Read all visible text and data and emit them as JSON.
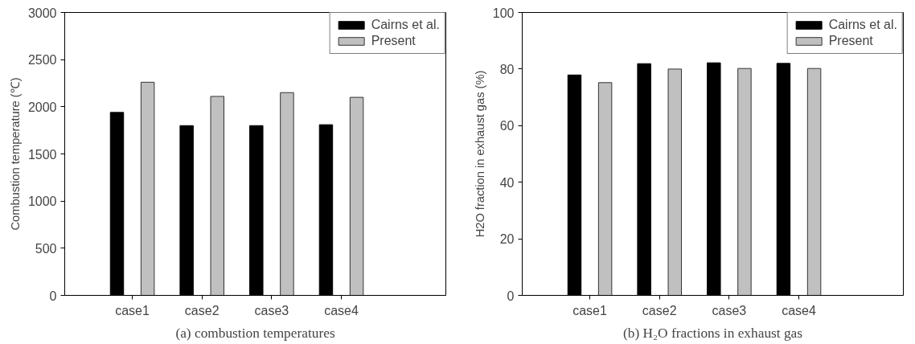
{
  "chart_data": [
    {
      "type": "bar",
      "title": "(a) combustion temperatures",
      "ylabel": "Combustion temperature (℃)",
      "categories": [
        "case1",
        "case2",
        "case3",
        "case4"
      ],
      "ylim": [
        0,
        3000
      ],
      "yticks": [
        0,
        500,
        1000,
        1500,
        2000,
        2500,
        3000
      ],
      "grid": false,
      "legend": "top right",
      "series": [
        {
          "name": "Cairns et al.",
          "color": "#000000",
          "values": [
            1940,
            1800,
            1800,
            1810
          ]
        },
        {
          "name": "Present",
          "color": "#c0c0c0",
          "values": [
            2260,
            2110,
            2150,
            2100
          ]
        }
      ]
    },
    {
      "type": "bar",
      "title": "(b) H₂O fractions in exhaust gas",
      "ylabel": "H2O fraction in exhaust gas (%)",
      "categories": [
        "case1",
        "case2",
        "case3",
        "case4"
      ],
      "ylim": [
        0,
        100
      ],
      "yticks": [
        0,
        20,
        40,
        60,
        80,
        100
      ],
      "grid": false,
      "legend": "top right",
      "series": [
        {
          "name": "Cairns et al.",
          "color": "#000000",
          "values": [
            77.9,
            81.9,
            82.2,
            82
          ]
        },
        {
          "name": "Present",
          "color": "#c0c0c0",
          "values": [
            75.2,
            80,
            80.2,
            80.2
          ]
        }
      ]
    }
  ]
}
